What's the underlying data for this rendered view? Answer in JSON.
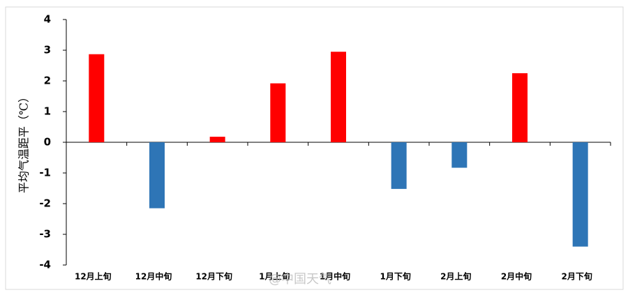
{
  "chart_data": {
    "type": "bar",
    "y_label": "平均气温距平（℃）",
    "categories": [
      "12月上旬",
      "12月中旬",
      "12月下旬",
      "1月上旬",
      "1月中旬",
      "1月下旬",
      "2月上旬",
      "2月中旬",
      "2月下旬"
    ],
    "values": [
      2.87,
      -2.15,
      0.18,
      1.92,
      2.95,
      -1.52,
      -0.83,
      2.25,
      -3.4
    ],
    "positive_color": "#ff0000",
    "negative_color": "#2e75b6",
    "ylim": [
      -4,
      4
    ],
    "yticks": [
      -4,
      -3,
      -2,
      -1,
      0,
      1,
      2,
      3,
      4
    ],
    "grid": false,
    "watermark": "@中国天气"
  }
}
